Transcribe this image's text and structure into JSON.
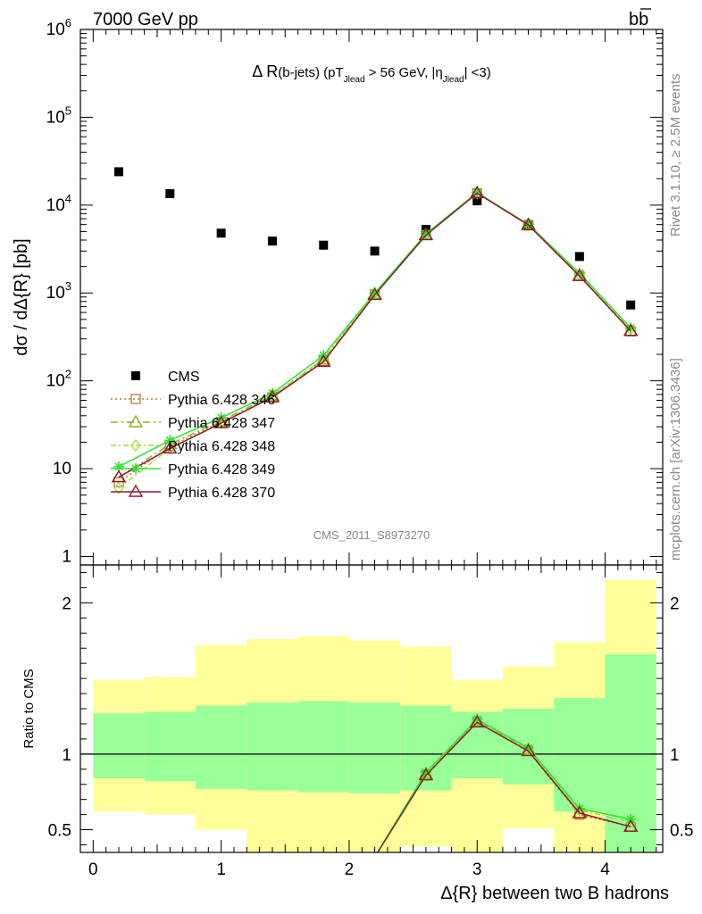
{
  "header": {
    "left": "7000 GeV pp",
    "right": "bb",
    "right_overbar": "b"
  },
  "side_text": {
    "rivet": "Rivet 3.1.10, ≥ 2.5M events",
    "mcplots": "mcplots.cern.ch [arXiv:1306.3436]"
  },
  "chart_data": [
    {
      "type": "scatter",
      "panel": "main",
      "title": "Δ R(b-jets) (pT_Jlead > 56 GeV, |η_Jlead| <3)",
      "title_parts": [
        "Δ R",
        "(b-jets) (pT",
        "Jlead",
        " >  56 GeV, |η",
        "Jlead",
        "| <3)"
      ],
      "ylabel": "dσ / dΔ{R} [pb]",
      "yscale": "log",
      "ylim": [
        0.8,
        1000000
      ],
      "xlim": [
        -0.1,
        4.45
      ],
      "y_ticks": [
        {
          "value": 1,
          "label": "1",
          "exp": ""
        },
        {
          "value": 10,
          "label": "10",
          "exp": ""
        },
        {
          "value": 100,
          "label": "10",
          "exp": "2"
        },
        {
          "value": 1000,
          "label": "10",
          "exp": "3"
        },
        {
          "value": 10000,
          "label": "10",
          "exp": "4"
        },
        {
          "value": 100000,
          "label": "10",
          "exp": "5"
        },
        {
          "value": 1000000,
          "label": "10",
          "exp": "6"
        }
      ],
      "watermark": "CMS_2011_S8973270",
      "legend_position": "lower-left",
      "series": [
        {
          "name": "CMS",
          "kind": "data",
          "marker": "square",
          "color": "#000000",
          "x": [
            0.2,
            0.6,
            1.0,
            1.4,
            1.8,
            2.2,
            2.6,
            3.0,
            3.4,
            3.8,
            4.2
          ],
          "y": [
            24000,
            13500,
            4800,
            3900,
            3500,
            3000,
            5300,
            11200,
            5800,
            2600,
            730
          ]
        },
        {
          "name": "Pythia 6.428 346",
          "kind": "mc",
          "marker": "square-open",
          "color": "#b07a3a",
          "dash": "2,3",
          "x": [
            0.2,
            0.6,
            1.0,
            1.4,
            1.8,
            2.2,
            2.6,
            3.0,
            3.4,
            3.8,
            4.2
          ],
          "y": [
            7.0,
            18,
            34,
            65,
            168,
            960,
            4550,
            13600,
            5950,
            1560,
            365
          ]
        },
        {
          "name": "Pythia 6.428 347",
          "kind": "mc",
          "marker": "triangle-open",
          "color": "#9aaa22",
          "dash": "8,4,2,4",
          "x": [
            0.2,
            0.6,
            1.0,
            1.4,
            1.8,
            2.2,
            2.6,
            3.0,
            3.4,
            3.8,
            4.2
          ],
          "y": [
            8.0,
            19,
            35,
            68,
            175,
            975,
            4600,
            13800,
            6000,
            1580,
            370
          ]
        },
        {
          "name": "Pythia 6.428 348",
          "kind": "mc",
          "marker": "diamond-open",
          "color": "#99e635",
          "dash": "6,3,2,3",
          "x": [
            0.2,
            0.6,
            1.0,
            1.4,
            1.8,
            2.2,
            2.6,
            3.0,
            3.4,
            3.8,
            4.2
          ],
          "y": [
            6.0,
            17,
            33,
            66,
            180,
            990,
            4650,
            13700,
            5980,
            1620,
            385
          ]
        },
        {
          "name": "Pythia 6.428 349",
          "kind": "mc",
          "marker": "star",
          "color": "#33e033",
          "dash": "",
          "x": [
            0.2,
            0.6,
            1.0,
            1.4,
            1.8,
            2.2,
            2.6,
            3.0,
            3.4,
            3.8,
            4.2
          ],
          "y": [
            10.5,
            21,
            38,
            72,
            195,
            1000,
            4700,
            13900,
            6050,
            1680,
            400
          ]
        },
        {
          "name": "Pythia 6.428 370",
          "kind": "mc",
          "marker": "triangle-open",
          "color": "#8b1a2b",
          "dash": "",
          "x": [
            0.2,
            0.6,
            1.0,
            1.4,
            1.8,
            2.2,
            2.6,
            3.0,
            3.4,
            3.8,
            4.2
          ],
          "y": [
            8.0,
            17,
            33,
            65,
            165,
            950,
            4550,
            13700,
            5950,
            1560,
            370
          ]
        }
      ]
    },
    {
      "type": "area",
      "panel": "ratio",
      "ylabel": "Ratio to CMS",
      "xlabel": "Δ{R} between two B hadrons",
      "ylim": [
        0.35,
        2.25
      ],
      "xlim": [
        -0.1,
        4.45
      ],
      "x_ticks": [
        0,
        1,
        2,
        3,
        4
      ],
      "y_ticks": [
        0.5,
        1,
        2
      ],
      "reference_line": 1,
      "bands": {
        "x_edges": [
          0.0,
          0.4,
          0.8,
          1.2,
          1.6,
          2.0,
          2.4,
          2.8,
          3.2,
          3.6,
          4.0,
          4.4
        ],
        "green_low": [
          0.84,
          0.82,
          0.77,
          0.76,
          0.75,
          0.74,
          0.76,
          0.84,
          0.8,
          0.62,
          0.35
        ],
        "green_high": [
          1.27,
          1.28,
          1.32,
          1.34,
          1.35,
          1.34,
          1.32,
          1.28,
          1.3,
          1.37,
          1.66
        ],
        "yellow_low": [
          0.62,
          0.6,
          0.5,
          0.35,
          0.35,
          0.35,
          0.39,
          0.35,
          0.51,
          0.35,
          0.35
        ],
        "yellow_high": [
          1.49,
          1.51,
          1.72,
          1.76,
          1.78,
          1.75,
          1.71,
          1.49,
          1.58,
          1.74,
          2.15
        ],
        "green_color": "#99ff99",
        "yellow_color": "#ffff99"
      },
      "series": [
        {
          "name": "Pythia 6.428 346",
          "color": "#b07a3a",
          "dash": "2,3",
          "marker": "square-open",
          "x": [
            2.2,
            2.6,
            3.0,
            3.4,
            3.8,
            4.2
          ],
          "y": [
            0.32,
            0.86,
            1.21,
            1.02,
            0.6,
            0.52
          ]
        },
        {
          "name": "Pythia 6.428 347",
          "color": "#9aaa22",
          "dash": "8,4,2,4",
          "marker": "triangle-open",
          "x": [
            2.2,
            2.6,
            3.0,
            3.4,
            3.8,
            4.2
          ],
          "y": [
            0.32,
            0.87,
            1.22,
            1.03,
            0.61,
            0.52
          ]
        },
        {
          "name": "Pythia 6.428 348",
          "color": "#99e635",
          "dash": "6,3,2,3",
          "marker": "diamond-open",
          "x": [
            2.2,
            2.6,
            3.0,
            3.4,
            3.8,
            4.2
          ],
          "y": [
            0.32,
            0.87,
            1.22,
            1.03,
            0.63,
            0.55
          ]
        },
        {
          "name": "Pythia 6.428 349",
          "color": "#33e033",
          "dash": "",
          "marker": "star",
          "x": [
            2.2,
            2.6,
            3.0,
            3.4,
            3.8,
            4.2
          ],
          "y": [
            0.32,
            0.88,
            1.23,
            1.04,
            0.64,
            0.57
          ]
        },
        {
          "name": "Pythia 6.428 370",
          "color": "#8b1a2b",
          "dash": "",
          "marker": "triangle-open",
          "x": [
            2.2,
            2.6,
            3.0,
            3.4,
            3.8,
            4.2
          ],
          "y": [
            0.32,
            0.86,
            1.21,
            1.02,
            0.61,
            0.52
          ]
        }
      ]
    }
  ]
}
